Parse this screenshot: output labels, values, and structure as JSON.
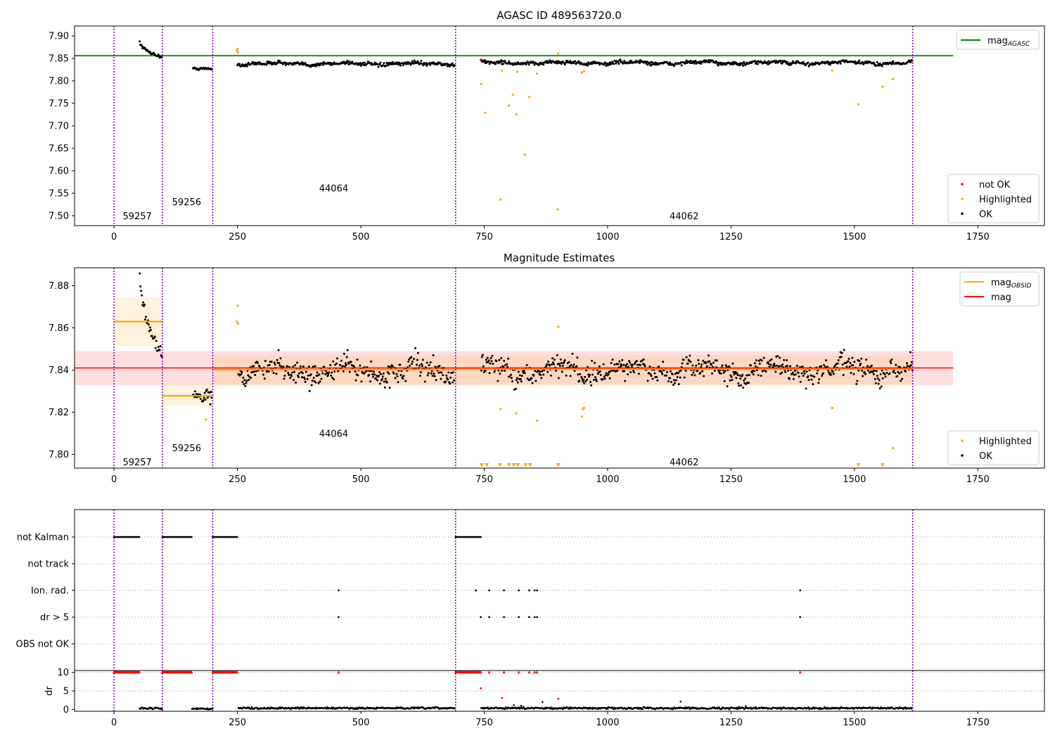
{
  "figure_title": "AGASC ID 489563720.0",
  "chart_data": [
    {
      "type": "scatter",
      "title": "AGASC ID 489563720.0",
      "xlabel": "",
      "ylabel": "",
      "xlim": [
        -80,
        1885
      ],
      "ylim": [
        7.478,
        7.922
      ],
      "xticks": [
        0,
        250,
        500,
        750,
        1000,
        1250,
        1500,
        1750
      ],
      "yticks": [
        7.5,
        7.55,
        7.6,
        7.65,
        7.7,
        7.75,
        7.8,
        7.85,
        7.9
      ],
      "obsid_boundaries": [
        0,
        98,
        200,
        692,
        1618
      ],
      "obsid_labels": [
        {
          "text": "59257",
          "x": 47,
          "y": 7.5
        },
        {
          "text": "59256",
          "x": 147,
          "y": 7.531
        },
        {
          "text": "44064",
          "x": 445,
          "y": 7.562
        },
        {
          "text": "44062",
          "x": 1155,
          "y": 7.5
        }
      ],
      "reference_lines": [
        {
          "name": "mag_AGASC",
          "y": 7.856,
          "x_range": [
            -80,
            1700
          ],
          "color": "#008000"
        }
      ],
      "segments": [
        {
          "x_range": [
            52,
            98
          ],
          "shape": "decay",
          "start": 7.888,
          "end": 7.852,
          "noise": 0.003
        },
        {
          "x_range": [
            160,
            198
          ],
          "shape": "flat",
          "mean": 7.827,
          "noise": 0.003
        },
        {
          "x_range": [
            250,
            690
          ],
          "shape": "wavy",
          "mean": 7.838,
          "noise": 0.004
        },
        {
          "x_range": [
            744,
            1618
          ],
          "shape": "wavy",
          "mean": 7.84,
          "noise": 0.004
        }
      ],
      "highlighted_points": [
        [
          249,
          7.867
        ],
        [
          250,
          7.871
        ],
        [
          251,
          7.863
        ],
        [
          744,
          7.793
        ],
        [
          752,
          7.729
        ],
        [
          783,
          7.536
        ],
        [
          786,
          7.823
        ],
        [
          800,
          7.745
        ],
        [
          808,
          7.769
        ],
        [
          815,
          7.725
        ],
        [
          817,
          7.82
        ],
        [
          832,
          7.636
        ],
        [
          841,
          7.764
        ],
        [
          857,
          7.816
        ],
        [
          899,
          7.514
        ],
        [
          900,
          7.861
        ],
        [
          948,
          7.818
        ],
        [
          952,
          7.821
        ],
        [
          1455,
          7.823
        ],
        [
          1508,
          7.748
        ],
        [
          1557,
          7.787
        ],
        [
          1578,
          7.804
        ],
        [
          1618,
          7.842
        ]
      ],
      "not_ok_points": [
        [
          743,
          7.846
        ]
      ],
      "legend_top": [
        {
          "label": "mag",
          "sub": "AGASC",
          "color": "#008000",
          "kind": "line"
        }
      ],
      "legend_bottom": [
        {
          "label": "not OK",
          "color": "#ff0000",
          "kind": "dot"
        },
        {
          "label": "Highlighted",
          "color": "#ffa500",
          "kind": "dot"
        },
        {
          "label": "OK",
          "color": "#000000",
          "kind": "dot"
        }
      ]
    },
    {
      "type": "scatter",
      "title": "Magnitude Estimates",
      "xlabel": "",
      "ylabel": "",
      "xlim": [
        -80,
        1885
      ],
      "ylim": [
        7.7935,
        7.8885
      ],
      "xticks": [
        0,
        250,
        500,
        750,
        1000,
        1250,
        1500,
        1750
      ],
      "yticks": [
        7.8,
        7.82,
        7.84,
        7.86,
        7.88
      ],
      "obsid_boundaries": [
        0,
        98,
        200,
        692,
        1618
      ],
      "obsid_labels": [
        {
          "text": "59257",
          "x": 47,
          "y": 7.7965
        },
        {
          "text": "59256",
          "x": 147,
          "y": 7.8032
        },
        {
          "text": "44064",
          "x": 445,
          "y": 7.81
        },
        {
          "text": "44062",
          "x": 1155,
          "y": 7.7965
        }
      ],
      "mag": {
        "value": 7.841,
        "band": [
          7.8328,
          7.849
        ],
        "x_range": [
          -80,
          1700
        ],
        "color": "#ff0000"
      },
      "obsid_means": [
        {
          "x_range": [
            0,
            98
          ],
          "value": 7.863,
          "band": [
            7.8515,
            7.8745
          ]
        },
        {
          "x_range": [
            98,
            200
          ],
          "value": 7.8278,
          "band": [
            7.823,
            7.833
          ]
        },
        {
          "x_range": [
            200,
            692
          ],
          "value": 7.8402,
          "band": [
            7.833,
            7.847
          ]
        },
        {
          "x_range": [
            692,
            1618
          ],
          "value": 7.8405,
          "band": [
            7.833,
            7.847
          ]
        }
      ],
      "segments": [
        {
          "x_range": [
            52,
            98
          ],
          "shape": "decay",
          "start": 7.886,
          "end": 7.847,
          "noise": 0.003
        },
        {
          "x_range": [
            160,
            198
          ],
          "shape": "flat",
          "mean": 7.8275,
          "noise": 0.003
        },
        {
          "x_range": [
            252,
            690
          ],
          "shape": "wavy",
          "mean": 7.8395,
          "noise": 0.005
        },
        {
          "x_range": [
            744,
            1618
          ],
          "shape": "wavy",
          "mean": 7.84,
          "noise": 0.005
        }
      ],
      "highlighted_points": [
        [
          249,
          7.863
        ],
        [
          250,
          7.8705
        ],
        [
          251,
          7.862
        ],
        [
          186,
          7.8165
        ],
        [
          783,
          7.8215
        ],
        [
          815,
          7.8195
        ],
        [
          857,
          7.816
        ],
        [
          900,
          7.8605
        ],
        [
          948,
          7.818
        ],
        [
          950,
          7.8215
        ],
        [
          952,
          7.822
        ],
        [
          1455,
          7.822
        ],
        [
          1578,
          7.803
        ]
      ],
      "offscale_markers_x": [
        745,
        755,
        782,
        800,
        810,
        818,
        834,
        843,
        900,
        1508,
        1557
      ],
      "legend_top": [
        {
          "label": "mag",
          "sub": "OBSID",
          "color": "#ffa500",
          "kind": "line"
        },
        {
          "label": "mag",
          "sub": "",
          "color": "#ff0000",
          "kind": "line"
        }
      ],
      "legend_bottom": [
        {
          "label": "Highlighted",
          "color": "#ffa500",
          "kind": "dot"
        },
        {
          "label": "OK",
          "color": "#000000",
          "kind": "dot"
        }
      ]
    },
    {
      "type": "scatter",
      "title": "",
      "xlabel": "",
      "ylabel": "",
      "xlim": [
        -80,
        1885
      ],
      "obsid_boundaries": [
        0,
        98,
        200,
        692,
        1618
      ],
      "flag_rows": [
        {
          "label": "not Kalman",
          "runs": [
            [
              0,
              52
            ],
            [
              98,
              158
            ],
            [
              200,
              250
            ],
            [
              692,
              744
            ]
          ],
          "points": []
        },
        {
          "label": "not track",
          "runs": [],
          "points": []
        },
        {
          "label": "Ion. rad.",
          "runs": [],
          "points": [
            455,
            733,
            760,
            790,
            820,
            841,
            852,
            857,
            1390
          ]
        },
        {
          "label": "dr > 5",
          "runs": [],
          "points": [
            455,
            743,
            760,
            790,
            820,
            841,
            852,
            857,
            1390
          ]
        },
        {
          "label": "OBS not OK",
          "runs": [],
          "points": []
        }
      ]
    },
    {
      "type": "scatter",
      "title": "",
      "xlabel": "",
      "ylabel": "dr",
      "xlim": [
        -80,
        1885
      ],
      "ylim": [
        -0.5,
        10.5
      ],
      "xticks": [
        0,
        250,
        500,
        750,
        1000,
        1250,
        1500,
        1750
      ],
      "yticks": [
        0,
        5,
        10
      ],
      "obsid_boundaries": [
        0,
        98,
        200,
        692,
        1618
      ],
      "clipped_runs": [
        [
          0,
          52
        ],
        [
          98,
          158
        ],
        [
          200,
          250
        ],
        [
          692,
          744
        ]
      ],
      "clipped_points": [
        455,
        760,
        790,
        820,
        841,
        852,
        857,
        1390
      ],
      "red_points": [
        [
          743,
          5.7
        ],
        [
          786,
          3.1
        ],
        [
          900,
          2.9
        ]
      ],
      "segments": [
        {
          "x_range": [
            52,
            98
          ],
          "mean": 0.3,
          "noise": 0.25
        },
        {
          "x_range": [
            158,
            200
          ],
          "mean": 0.2,
          "noise": 0.2
        },
        {
          "x_range": [
            252,
            690
          ],
          "mean": 0.35,
          "noise": 0.25
        },
        {
          "x_range": [
            744,
            1618
          ],
          "mean": 0.35,
          "noise": 0.25
        }
      ],
      "black_outliers": [
        [
          1148,
          2.1
        ],
        [
          868,
          2.0
        ],
        [
          810,
          1.2
        ],
        [
          825,
          1.0
        ],
        [
          1280,
          0.9
        ]
      ]
    }
  ]
}
